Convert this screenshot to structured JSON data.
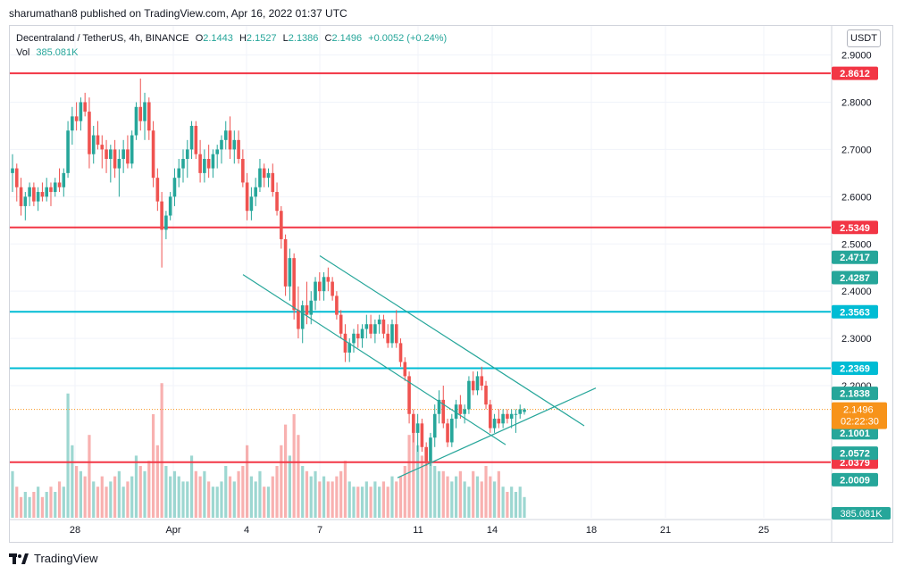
{
  "header": {
    "publisher_text": "sharumathan8 published on TradingView.com, Apr 16, 2022 01:37 UTC"
  },
  "legend": {
    "symbol": "Decentraland / TetherUS, 4h, BINANCE",
    "o_label": "O",
    "o_value": "2.1443",
    "h_label": "H",
    "h_value": "2.1527",
    "l_label": "L",
    "l_value": "2.1386",
    "c_label": "C",
    "c_value": "2.1496",
    "change": "+0.0052 (+0.24%)",
    "vol_label": "Vol",
    "vol_value": "385.081K"
  },
  "toolbar": {
    "currency_button": "USDT"
  },
  "footer": {
    "brand": "TradingView"
  },
  "colors": {
    "up": "#26a69a",
    "down": "#ef5350",
    "resistance": "#f23645",
    "support_cyan": "#00bcd4",
    "channel": "#26a69a",
    "current_price": "#f7931a",
    "grid": "#f0f3fa"
  },
  "chart_data": {
    "type": "candlestick",
    "y_ticks": [
      "2.9000",
      "2.8000",
      "2.7000",
      "2.6000",
      "2.5000",
      "2.4000",
      "2.3000",
      "2.2000"
    ],
    "y_range": [
      1.96,
      2.92
    ],
    "x_ticks": [
      "28",
      "Apr",
      "4",
      "7",
      "11",
      "14",
      "18",
      "21",
      "25"
    ],
    "horizontal_levels": [
      {
        "value": 2.8612,
        "label": "2.8612",
        "color": "#f23645"
      },
      {
        "value": 2.5349,
        "label": "2.5349",
        "color": "#f23645"
      },
      {
        "value": 2.3563,
        "label": "2.3563",
        "color": "#00bcd4"
      },
      {
        "value": 2.2369,
        "label": "2.2369",
        "color": "#00bcd4"
      },
      {
        "value": 2.0379,
        "label": "2.0379",
        "color": "#f23645"
      }
    ],
    "price_labels": [
      {
        "value": 2.4717,
        "label": "2.4717",
        "color": "#26a69a"
      },
      {
        "value": 2.4287,
        "label": "2.4287",
        "color": "#26a69a"
      },
      {
        "value": 2.1838,
        "label": "2.1838",
        "color": "#26a69a"
      },
      {
        "value": 2.1001,
        "label": "2.1001",
        "color": "#26a69a"
      },
      {
        "value": 2.0572,
        "label": "2.0572",
        "color": "#26a69a"
      },
      {
        "value": 2.0009,
        "label": "2.0009",
        "color": "#26a69a"
      }
    ],
    "current_price": {
      "value": 2.1496,
      "label": "2.1496",
      "countdown": "02:22:30"
    },
    "volume_label": "385.081K",
    "trendlines": [
      {
        "x1": "Mar 31",
        "y1": 2.435,
        "x2": "Apr 14",
        "y2": 2.075
      },
      {
        "x1": "Apr 7",
        "y1": 2.475,
        "x2": "Apr 18",
        "y2": 2.115
      },
      {
        "x1": "Apr 10",
        "y1": 2.005,
        "x2": "Apr 17",
        "y2": 2.195
      }
    ],
    "candles": [
      [
        2.65,
        2.69,
        2.61,
        2.66
      ],
      [
        2.66,
        2.67,
        2.59,
        2.62
      ],
      [
        2.62,
        2.64,
        2.56,
        2.58
      ],
      [
        2.58,
        2.61,
        2.55,
        2.6
      ],
      [
        2.6,
        2.63,
        2.58,
        2.62
      ],
      [
        2.62,
        2.63,
        2.58,
        2.59
      ],
      [
        2.59,
        2.62,
        2.57,
        2.61
      ],
      [
        2.61,
        2.63,
        2.59,
        2.6
      ],
      [
        2.6,
        2.64,
        2.59,
        2.62
      ],
      [
        2.62,
        2.63,
        2.58,
        2.61
      ],
      [
        2.61,
        2.64,
        2.6,
        2.63
      ],
      [
        2.63,
        2.66,
        2.61,
        2.62
      ],
      [
        2.62,
        2.66,
        2.6,
        2.65
      ],
      [
        2.65,
        2.76,
        2.64,
        2.74
      ],
      [
        2.74,
        2.79,
        2.71,
        2.77
      ],
      [
        2.77,
        2.8,
        2.74,
        2.76
      ],
      [
        2.76,
        2.81,
        2.74,
        2.8
      ],
      [
        2.8,
        2.82,
        2.77,
        2.78
      ],
      [
        2.78,
        2.81,
        2.66,
        2.69
      ],
      [
        2.69,
        2.75,
        2.67,
        2.73
      ],
      [
        2.73,
        2.76,
        2.7,
        2.71
      ],
      [
        2.71,
        2.73,
        2.66,
        2.7
      ],
      [
        2.7,
        2.72,
        2.65,
        2.68
      ],
      [
        2.68,
        2.71,
        2.63,
        2.7
      ],
      [
        2.7,
        2.72,
        2.64,
        2.66
      ],
      [
        2.66,
        2.7,
        2.6,
        2.68
      ],
      [
        2.68,
        2.72,
        2.65,
        2.7
      ],
      [
        2.7,
        2.73,
        2.66,
        2.67
      ],
      [
        2.67,
        2.74,
        2.66,
        2.73
      ],
      [
        2.73,
        2.8,
        2.72,
        2.79
      ],
      [
        2.79,
        2.85,
        2.74,
        2.76
      ],
      [
        2.76,
        2.82,
        2.72,
        2.8
      ],
      [
        2.8,
        2.81,
        2.72,
        2.74
      ],
      [
        2.74,
        2.76,
        2.62,
        2.64
      ],
      [
        2.64,
        2.66,
        2.57,
        2.59
      ],
      [
        2.59,
        2.61,
        2.45,
        2.53
      ],
      [
        2.53,
        2.57,
        2.51,
        2.56
      ],
      [
        2.56,
        2.61,
        2.55,
        2.6
      ],
      [
        2.6,
        2.66,
        2.58,
        2.64
      ],
      [
        2.64,
        2.68,
        2.62,
        2.66
      ],
      [
        2.66,
        2.7,
        2.63,
        2.68
      ],
      [
        2.68,
        2.72,
        2.64,
        2.7
      ],
      [
        2.7,
        2.76,
        2.68,
        2.75
      ],
      [
        2.75,
        2.76,
        2.68,
        2.69
      ],
      [
        2.69,
        2.72,
        2.63,
        2.65
      ],
      [
        2.65,
        2.7,
        2.63,
        2.68
      ],
      [
        2.68,
        2.71,
        2.64,
        2.66
      ],
      [
        2.66,
        2.7,
        2.64,
        2.69
      ],
      [
        2.69,
        2.71,
        2.66,
        2.7
      ],
      [
        2.7,
        2.73,
        2.67,
        2.72
      ],
      [
        2.72,
        2.76,
        2.7,
        2.74
      ],
      [
        2.74,
        2.77,
        2.68,
        2.7
      ],
      [
        2.7,
        2.74,
        2.67,
        2.72
      ],
      [
        2.72,
        2.74,
        2.67,
        2.68
      ],
      [
        2.68,
        2.7,
        2.62,
        2.63
      ],
      [
        2.63,
        2.65,
        2.55,
        2.57
      ],
      [
        2.57,
        2.62,
        2.55,
        2.6
      ],
      [
        2.6,
        2.64,
        2.58,
        2.62
      ],
      [
        2.62,
        2.68,
        2.61,
        2.66
      ],
      [
        2.66,
        2.67,
        2.62,
        2.64
      ],
      [
        2.64,
        2.66,
        2.62,
        2.65
      ],
      [
        2.65,
        2.67,
        2.6,
        2.61
      ],
      [
        2.61,
        2.63,
        2.56,
        2.57
      ],
      [
        2.57,
        2.58,
        2.49,
        2.51
      ],
      [
        2.51,
        2.52,
        2.39,
        2.41
      ],
      [
        2.41,
        2.49,
        2.38,
        2.47
      ],
      [
        2.47,
        2.48,
        2.34,
        2.36
      ],
      [
        2.36,
        2.41,
        2.3,
        2.32
      ],
      [
        2.32,
        2.38,
        2.29,
        2.37
      ],
      [
        2.37,
        2.42,
        2.33,
        2.35
      ],
      [
        2.35,
        2.4,
        2.33,
        2.38
      ],
      [
        2.38,
        2.43,
        2.36,
        2.42
      ],
      [
        2.42,
        2.44,
        2.38,
        2.4
      ],
      [
        2.4,
        2.44,
        2.38,
        2.43
      ],
      [
        2.43,
        2.45,
        2.4,
        2.42
      ],
      [
        2.42,
        2.43,
        2.38,
        2.39
      ],
      [
        2.39,
        2.4,
        2.34,
        2.35
      ],
      [
        2.35,
        2.36,
        2.3,
        2.31
      ],
      [
        2.31,
        2.33,
        2.25,
        2.27
      ],
      [
        2.27,
        2.3,
        2.25,
        2.29
      ],
      [
        2.29,
        2.32,
        2.27,
        2.31
      ],
      [
        2.31,
        2.33,
        2.28,
        2.3
      ],
      [
        2.3,
        2.33,
        2.28,
        2.32
      ],
      [
        2.32,
        2.35,
        2.3,
        2.33
      ],
      [
        2.33,
        2.35,
        2.3,
        2.31
      ],
      [
        2.31,
        2.34,
        2.29,
        2.33
      ],
      [
        2.33,
        2.35,
        2.31,
        2.34
      ],
      [
        2.34,
        2.35,
        2.3,
        2.31
      ],
      [
        2.31,
        2.33,
        2.28,
        2.29
      ],
      [
        2.29,
        2.34,
        2.28,
        2.33
      ],
      [
        2.33,
        2.36,
        2.28,
        2.29
      ],
      [
        2.29,
        2.3,
        2.24,
        2.25
      ],
      [
        2.25,
        2.26,
        2.21,
        2.22
      ],
      [
        2.22,
        2.23,
        2.12,
        2.14
      ],
      [
        2.14,
        2.15,
        2.08,
        2.1
      ],
      [
        2.1,
        2.14,
        2.06,
        2.12
      ],
      [
        2.12,
        2.13,
        2.06,
        2.07
      ],
      [
        2.07,
        2.08,
        2.03,
        2.04
      ],
      [
        2.04,
        2.1,
        2.03,
        2.09
      ],
      [
        2.09,
        2.16,
        2.07,
        2.14
      ],
      [
        2.14,
        2.19,
        2.12,
        2.17
      ],
      [
        2.17,
        2.2,
        2.11,
        2.12
      ],
      [
        2.12,
        2.13,
        2.07,
        2.08
      ],
      [
        2.08,
        2.14,
        2.07,
        2.13
      ],
      [
        2.13,
        2.17,
        2.11,
        2.16
      ],
      [
        2.16,
        2.18,
        2.13,
        2.14
      ],
      [
        2.14,
        2.16,
        2.12,
        2.15
      ],
      [
        2.15,
        2.22,
        2.14,
        2.21
      ],
      [
        2.21,
        2.23,
        2.18,
        2.19
      ],
      [
        2.19,
        2.23,
        2.18,
        2.22
      ],
      [
        2.22,
        2.24,
        2.19,
        2.2
      ],
      [
        2.2,
        2.21,
        2.15,
        2.16
      ],
      [
        2.16,
        2.17,
        2.1,
        2.11
      ],
      [
        2.11,
        2.14,
        2.1,
        2.13
      ],
      [
        2.13,
        2.15,
        2.11,
        2.12
      ],
      [
        2.12,
        2.15,
        2.11,
        2.14
      ],
      [
        2.14,
        2.15,
        2.12,
        2.13
      ],
      [
        2.13,
        2.15,
        2.11,
        2.14
      ],
      [
        2.14,
        2.15,
        2.1,
        2.14
      ],
      [
        2.14,
        2.16,
        2.13,
        2.15
      ],
      [
        2.1443,
        2.1527,
        2.1386,
        2.1496
      ]
    ],
    "volumes": [
      9,
      6,
      4,
      5,
      4,
      5,
      6,
      4,
      5,
      6,
      5,
      7,
      6,
      24,
      14,
      10,
      9,
      8,
      16,
      7,
      6,
      8,
      6,
      7,
      8,
      9,
      6,
      7,
      8,
      12,
      10,
      9,
      11,
      20,
      14,
      26,
      10,
      8,
      9,
      8,
      7,
      7,
      12,
      9,
      8,
      9,
      7,
      6,
      6,
      7,
      10,
      8,
      7,
      9,
      10,
      14,
      8,
      7,
      9,
      6,
      6,
      8,
      10,
      14,
      18,
      12,
      20,
      16,
      10,
      9,
      8,
      9,
      7,
      8,
      7,
      7,
      8,
      9,
      11,
      7,
      6,
      6,
      6,
      7,
      6,
      7,
      6,
      7,
      6,
      8,
      7,
      8,
      10,
      16,
      18,
      14,
      12,
      13,
      11,
      10,
      9,
      9,
      8,
      7,
      8,
      9,
      7,
      6,
      9,
      8,
      7,
      10,
      8,
      7,
      9,
      6,
      5,
      6,
      5,
      6,
      4,
      3,
      2
    ]
  }
}
